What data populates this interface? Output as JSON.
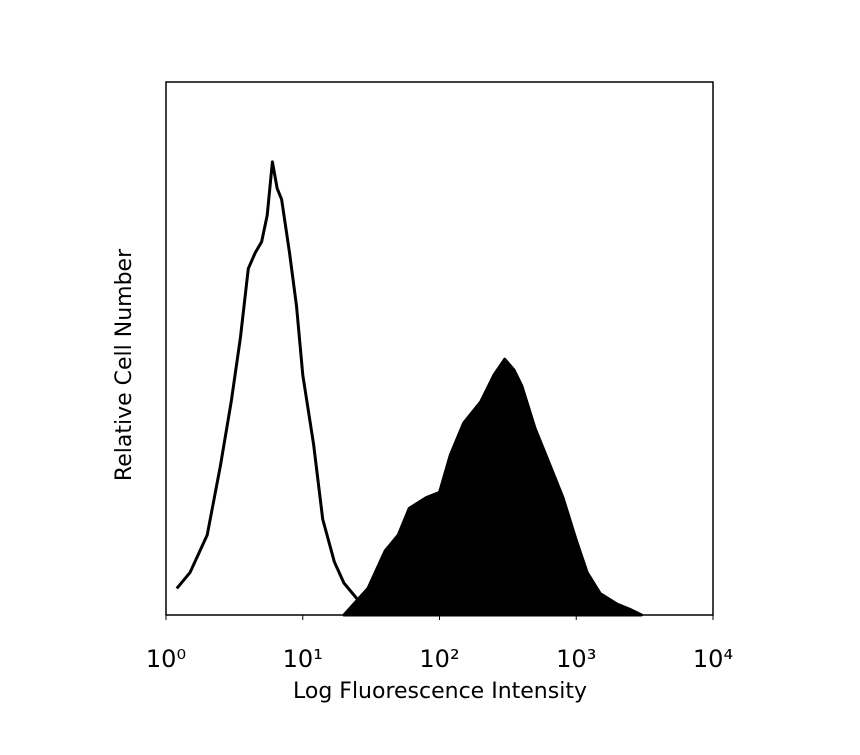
{
  "chart_data": {
    "type": "area",
    "x_label": "Log Fluorescence Intensity",
    "y_label": "Relative Cell Number",
    "xscale": "log",
    "xlim": [
      1,
      10000
    ],
    "xticks": [
      {
        "value": 1,
        "label": "10⁰"
      },
      {
        "value": 10,
        "label": "10¹"
      },
      {
        "value": 100,
        "label": "10²"
      },
      {
        "value": 1000,
        "label": "10³"
      },
      {
        "value": 10000,
        "label": "10⁴"
      }
    ],
    "ylim": [
      0,
      100
    ],
    "series": [
      {
        "color": "#000000",
        "filled": false,
        "x": [
          1.2,
          1.5,
          2,
          2.5,
          3,
          3.5,
          4,
          4.5,
          5,
          5.5,
          6,
          6.5,
          7,
          8,
          9,
          10,
          12,
          14,
          17,
          20,
          25,
          30,
          40
        ],
        "values": [
          5,
          8,
          15,
          28,
          40,
          52,
          65,
          68,
          70,
          75,
          85,
          80,
          78,
          68,
          58,
          45,
          32,
          18,
          10,
          6,
          3,
          1,
          0
        ]
      },
      {
        "color": "#000000",
        "filled": true,
        "x": [
          20,
          30,
          40,
          50,
          60,
          80,
          100,
          120,
          150,
          200,
          250,
          300,
          350,
          400,
          500,
          600,
          800,
          1000,
          1200,
          1500,
          2000,
          2500,
          3000
        ],
        "values": [
          0,
          5,
          12,
          15,
          20,
          22,
          23,
          30,
          36,
          40,
          45,
          48,
          46,
          43,
          35,
          30,
          22,
          14,
          8,
          4,
          2,
          1,
          0
        ]
      }
    ]
  }
}
